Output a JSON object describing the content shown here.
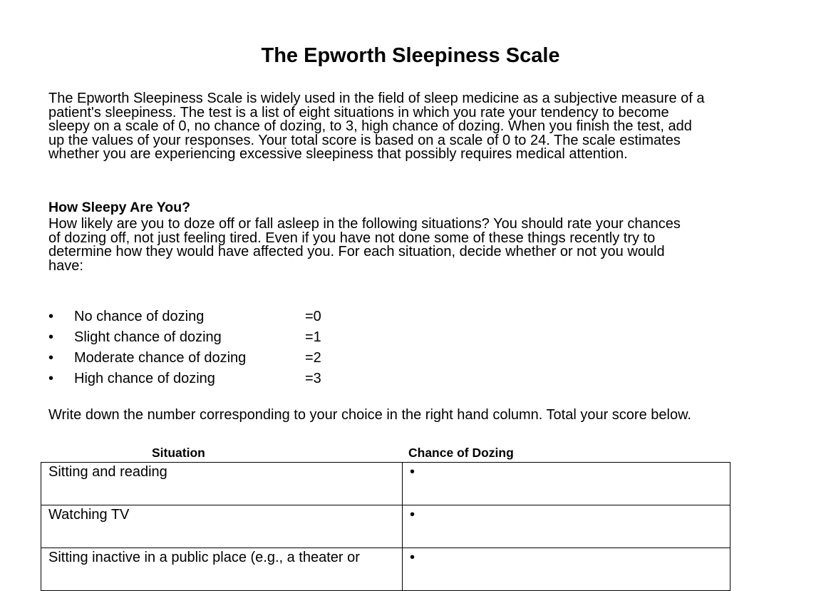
{
  "title": "The Epworth Sleepiness Scale",
  "intro_lines": [
    "The Epworth Sleepiness Scale is widely used in the field of sleep medicine as a subjective measure of a",
    "patient's sleepiness.  The test is a list of eight situations in which you rate your tendency to become",
    "sleepy on a scale of 0, no chance of dozing, to 3, high chance of dozing.  When you finish the test, add",
    "up the values of your responses.  Your total score is based on a scale of 0 to 24.  The scale estimates",
    "whether you are experiencing excessive sleepiness that possibly requires medical attention."
  ],
  "section_heading": "How Sleepy Are You?",
  "question_lines": [
    "How likely are you to doze off or fall asleep in the following situations? You should rate your chances",
    "of dozing off, not just feeling tired. Even if you have not done some of these things recently try to",
    "determine how they would have affected you. For each situation, decide whether or not you would",
    "have:"
  ],
  "scale": [
    {
      "label": "No chance of dozing",
      "value": "=0"
    },
    {
      "label": "Slight chance of dozing",
      "value": "=1"
    },
    {
      "label": "Moderate chance of dozing",
      "value": "=2"
    },
    {
      "label": "High chance of dozing",
      "value": "=3"
    }
  ],
  "instruction": "Write down the number corresponding to your choice in the right hand column. Total your score below.",
  "table": {
    "headers": [
      "Situation",
      "Chance of Dozing"
    ],
    "rows": [
      {
        "situation": "Sitting and reading",
        "chance": "•"
      },
      {
        "situation": "Watching TV",
        "chance": "•"
      },
      {
        "situation": "Sitting inactive in a public place (e.g., a theater or",
        "chance": "•"
      }
    ]
  }
}
